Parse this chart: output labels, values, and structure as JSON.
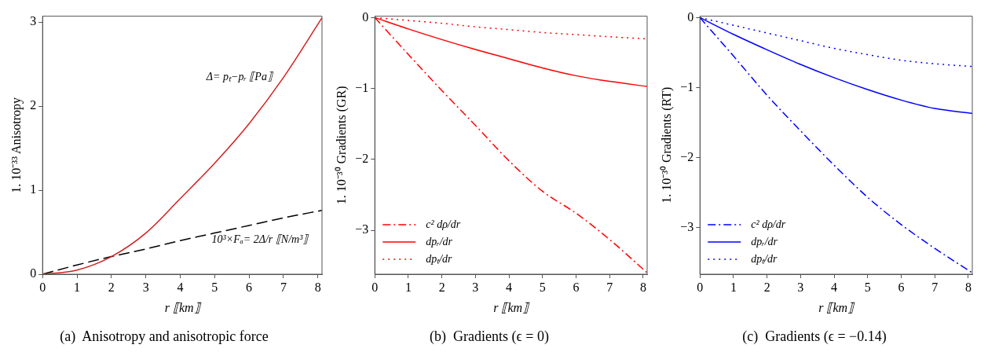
{
  "chart_data": [
    {
      "type": "line",
      "title": "(a)  Anisotropy and anisotropic force",
      "xlabel": "r ⟦km⟧",
      "ylabel": "1. 10⁻³³ Anisotropy",
      "xlim": [
        0,
        8.12
      ],
      "xticks": [
        0,
        1,
        2,
        3,
        4,
        5,
        6,
        7,
        8
      ],
      "ylim": [
        0,
        3.07
      ],
      "yticks": [
        0,
        1,
        2,
        3
      ],
      "x": [
        0,
        1,
        2,
        3,
        4,
        5,
        6,
        7,
        8.12
      ],
      "series": [
        {
          "name": "Δ= pₜ−pᵣ ⟦Pa⟧",
          "color": "#d42020",
          "line_style": "solid",
          "values": [
            0,
            0.05,
            0.21,
            0.49,
            0.9,
            1.32,
            1.79,
            2.34,
            3.05
          ]
        },
        {
          "name": "10³×Fₐ= 2Δ/r ⟦N/m³⟧",
          "color": "#000000",
          "line_style": "dashed",
          "values": [
            0,
            0.11,
            0.21,
            0.3,
            0.4,
            0.49,
            0.58,
            0.67,
            0.76
          ]
        }
      ]
    },
    {
      "type": "line",
      "title": "(b)  Gradients (ϵ = 0)",
      "xlabel": "r ⟦km⟧",
      "ylabel": "1. 10⁻³⁰ Gradients (GR)",
      "xlim": [
        0,
        8.12
      ],
      "xticks": [
        0,
        1,
        2,
        3,
        4,
        5,
        6,
        7,
        8
      ],
      "ylim": [
        -3.62,
        0.02
      ],
      "yticks": [
        -3,
        -2,
        -1,
        0
      ],
      "x": [
        0,
        1,
        2,
        3,
        4,
        5,
        6,
        7,
        8.12
      ],
      "legend": "bottom left",
      "series": [
        {
          "name": "c² dρ/dr",
          "color": "#ff0000",
          "line_style": "dashdot",
          "values": [
            0,
            -0.52,
            -1.03,
            -1.52,
            -2.02,
            -2.45,
            -2.76,
            -3.13,
            -3.6
          ]
        },
        {
          "name": "dpᵣ/dr",
          "color": "#ff0000",
          "line_style": "solid",
          "values": [
            0,
            -0.16,
            -0.31,
            -0.45,
            -0.58,
            -0.71,
            -0.82,
            -0.9,
            -0.97
          ]
        },
        {
          "name": "dpₜ/dr",
          "color": "#ff0000",
          "line_style": "dotted",
          "values": [
            0,
            -0.04,
            -0.08,
            -0.13,
            -0.17,
            -0.21,
            -0.24,
            -0.27,
            -0.3
          ]
        }
      ]
    },
    {
      "type": "line",
      "title": "(c)  Gradients (ϵ = −0.14)",
      "xlabel": "r ⟦km⟧",
      "ylabel": "1. 10⁻³⁰ Gradients (RT)",
      "xlim": [
        0,
        8.12
      ],
      "xticks": [
        0,
        1,
        2,
        3,
        4,
        5,
        6,
        7,
        8
      ],
      "ylim": [
        -3.67,
        0.02
      ],
      "yticks": [
        -3,
        -2,
        -1,
        0
      ],
      "x": [
        0,
        1,
        2,
        3,
        4,
        5,
        6,
        7,
        8.12
      ],
      "legend": "bottom left",
      "series": [
        {
          "name": "c² dρ/dr",
          "color": "#0000ff",
          "line_style": "dashdot",
          "values": [
            0,
            -0.55,
            -1.11,
            -1.62,
            -2.11,
            -2.57,
            -2.96,
            -3.3,
            -3.65
          ]
        },
        {
          "name": "dpᵣ/dr",
          "color": "#0000ff",
          "line_style": "solid",
          "values": [
            0,
            -0.24,
            -0.46,
            -0.67,
            -0.86,
            -1.03,
            -1.18,
            -1.3,
            -1.37
          ]
        },
        {
          "name": "dpₜ/dr",
          "color": "#0000ff",
          "line_style": "dotted",
          "values": [
            0,
            -0.11,
            -0.22,
            -0.33,
            -0.44,
            -0.53,
            -0.61,
            -0.66,
            -0.7
          ]
        }
      ]
    }
  ]
}
